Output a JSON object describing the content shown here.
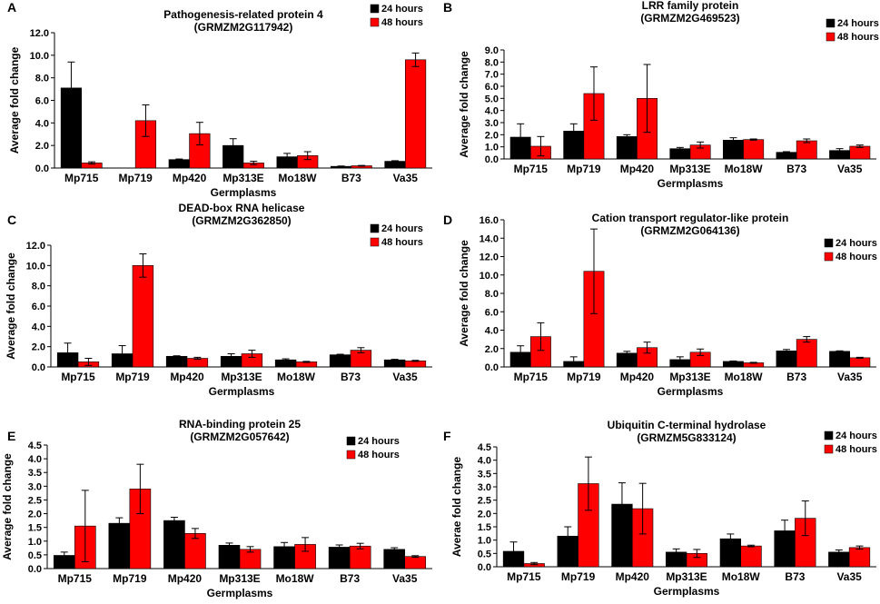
{
  "figure": {
    "colors": {
      "series_24": "#000000",
      "series_48": "#ff0000",
      "axis": "#000000"
    }
  },
  "chart_data": [
    {
      "type": "bar",
      "panel_label": "A",
      "title": "Pathogenesis-related protein 4",
      "subtitle": "(GRMZM2G117942)",
      "xlabel": "Germplasms",
      "ylabel": "Average fold change",
      "ylim": [
        0,
        12
      ],
      "yticks": [
        "0.0",
        "2.0",
        "4.0",
        "6.0",
        "8.0",
        "10.0",
        "12.0"
      ],
      "categories": [
        "Mp715",
        "Mp719",
        "Mp420",
        "Mp313E",
        "Mo18W",
        "B73",
        "Va35"
      ],
      "series": [
        {
          "name": "24 hours",
          "values": [
            7.1,
            0.0,
            0.75,
            2.0,
            1.0,
            0.15,
            0.6
          ],
          "errors": [
            2.3,
            0.0,
            0.05,
            0.6,
            0.3,
            0.03,
            0.05
          ]
        },
        {
          "name": "48 hours",
          "values": [
            0.45,
            4.2,
            3.05,
            0.45,
            1.1,
            0.2,
            9.6
          ],
          "errors": [
            0.1,
            1.4,
            1.0,
            0.15,
            0.35,
            0.03,
            0.6
          ]
        }
      ]
    },
    {
      "type": "bar",
      "panel_label": "B",
      "title": "LRR family protein",
      "subtitle": "(GRMZM2G469523)",
      "xlabel": "Germplasms",
      "ylabel": "Average fold change",
      "ylim": [
        0,
        9
      ],
      "yticks": [
        "0.0",
        "1.0",
        "2.0",
        "3.0",
        "4.0",
        "5.0",
        "6.0",
        "7.0",
        "8.0",
        "9.0"
      ],
      "categories": [
        "Mp715",
        "Mp719",
        "Mp420",
        "Mp313E",
        "Mo18W",
        "B73",
        "Va35"
      ],
      "series": [
        {
          "name": "24 hours",
          "values": [
            1.8,
            2.3,
            1.85,
            0.85,
            1.55,
            0.55,
            0.7
          ],
          "errors": [
            1.1,
            0.6,
            0.15,
            0.1,
            0.2,
            0.05,
            0.15
          ]
        },
        {
          "name": "48 hours",
          "values": [
            1.05,
            5.4,
            5.0,
            1.15,
            1.6,
            1.5,
            1.05
          ],
          "errors": [
            0.8,
            2.2,
            2.8,
            0.25,
            0.05,
            0.15,
            0.1
          ]
        }
      ]
    },
    {
      "type": "bar",
      "panel_label": "C",
      "title": "DEAD-box RNA helicase",
      "subtitle": "(GRMZM2G362850)",
      "xlabel": "Germplasms",
      "ylabel": "Average fold change",
      "ylim": [
        0,
        12
      ],
      "yticks": [
        "0.0",
        "2.0",
        "4.0",
        "6.0",
        "8.0",
        "10.0",
        "12.0"
      ],
      "categories": [
        "Mp715",
        "Mp719",
        "Mp420",
        "Mp313E",
        "Mo18W",
        "B73",
        "Va35"
      ],
      "series": [
        {
          "name": "24 hours",
          "values": [
            1.4,
            1.3,
            1.05,
            1.05,
            0.7,
            1.2,
            0.7
          ],
          "errors": [
            0.95,
            0.8,
            0.05,
            0.25,
            0.1,
            0.05,
            0.05
          ]
        },
        {
          "name": "48 hours",
          "values": [
            0.5,
            10.0,
            0.85,
            1.3,
            0.5,
            1.65,
            0.6
          ],
          "errors": [
            0.35,
            1.15,
            0.1,
            0.35,
            0.05,
            0.25,
            0.05
          ]
        }
      ]
    },
    {
      "type": "bar",
      "panel_label": "D",
      "title": "Cation transport regulator-like protein",
      "subtitle": "(GRMZM2G064136)",
      "xlabel": "Germplasms",
      "ylabel": "Average fold change",
      "ylim": [
        0,
        16
      ],
      "yticks": [
        "0.0",
        "2.0",
        "4.0",
        "6.0",
        "8.0",
        "10.0",
        "12.0",
        "14.0",
        "16.0"
      ],
      "categories": [
        "Mp715",
        "Mp719",
        "Mp420",
        "Mp313E",
        "Mo18W",
        "B73",
        "Va35"
      ],
      "series": [
        {
          "name": "24 hours",
          "values": [
            1.6,
            0.6,
            1.5,
            0.8,
            0.6,
            1.75,
            1.7
          ],
          "errors": [
            0.7,
            0.5,
            0.2,
            0.3,
            0.05,
            0.15,
            0.05
          ]
        },
        {
          "name": "48 hours",
          "values": [
            3.3,
            10.4,
            2.1,
            1.6,
            0.45,
            3.0,
            1.0
          ],
          "errors": [
            1.5,
            4.6,
            0.6,
            0.35,
            0.05,
            0.3,
            0.05
          ]
        }
      ]
    },
    {
      "type": "bar",
      "panel_label": "E",
      "title": "RNA-binding protein 25",
      "subtitle": "(GRMZM2G057642)",
      "xlabel": "Germplasms",
      "ylabel": "Average fold change",
      "ylim": [
        0,
        4.5
      ],
      "yticks": [
        "0.0",
        "0.5",
        "1.0",
        "1.5",
        "2.0",
        "2.5",
        "3.0",
        "3.5",
        "4.0",
        "4.5"
      ],
      "categories": [
        "Mp715",
        "Mp719",
        "Mp420",
        "Mp313E",
        "Mo18W",
        "B73",
        "Va35"
      ],
      "series": [
        {
          "name": "24 hours",
          "values": [
            0.48,
            1.65,
            1.75,
            0.85,
            0.8,
            0.78,
            0.7
          ],
          "errors": [
            0.12,
            0.2,
            0.12,
            0.08,
            0.15,
            0.08,
            0.06
          ]
        },
        {
          "name": "48 hours",
          "values": [
            1.55,
            2.9,
            1.28,
            0.7,
            0.88,
            0.82,
            0.44
          ],
          "errors": [
            1.3,
            0.9,
            0.18,
            0.1,
            0.25,
            0.1,
            0.03
          ]
        }
      ]
    },
    {
      "type": "bar",
      "panel_label": "F",
      "title": "Ubiquitin C-terminal hydrolase",
      "subtitle": "(GRMZM5G833124)",
      "xlabel": "Germplasms",
      "ylabel": "Averae fold change",
      "ylim": [
        0,
        4.5
      ],
      "yticks": [
        "0.0",
        "0.5",
        "1.0",
        "1.5",
        "2.0",
        "2.5",
        "3.0",
        "3.5",
        "4.0",
        "4.5"
      ],
      "categories": [
        "Mp715",
        "Mp719",
        "Mp420",
        "Mp313E",
        "Mo18W",
        "B73",
        "Va35"
      ],
      "series": [
        {
          "name": "24 hours",
          "values": [
            0.58,
            1.15,
            2.35,
            0.55,
            1.05,
            1.35,
            0.55
          ],
          "errors": [
            0.35,
            0.35,
            0.8,
            0.12,
            0.18,
            0.4,
            0.08
          ]
        },
        {
          "name": "48 hours",
          "values": [
            0.12,
            3.12,
            2.18,
            0.5,
            0.78,
            1.82,
            0.72
          ],
          "errors": [
            0.04,
            1.0,
            0.95,
            0.15,
            0.03,
            0.65,
            0.06
          ]
        }
      ]
    }
  ]
}
